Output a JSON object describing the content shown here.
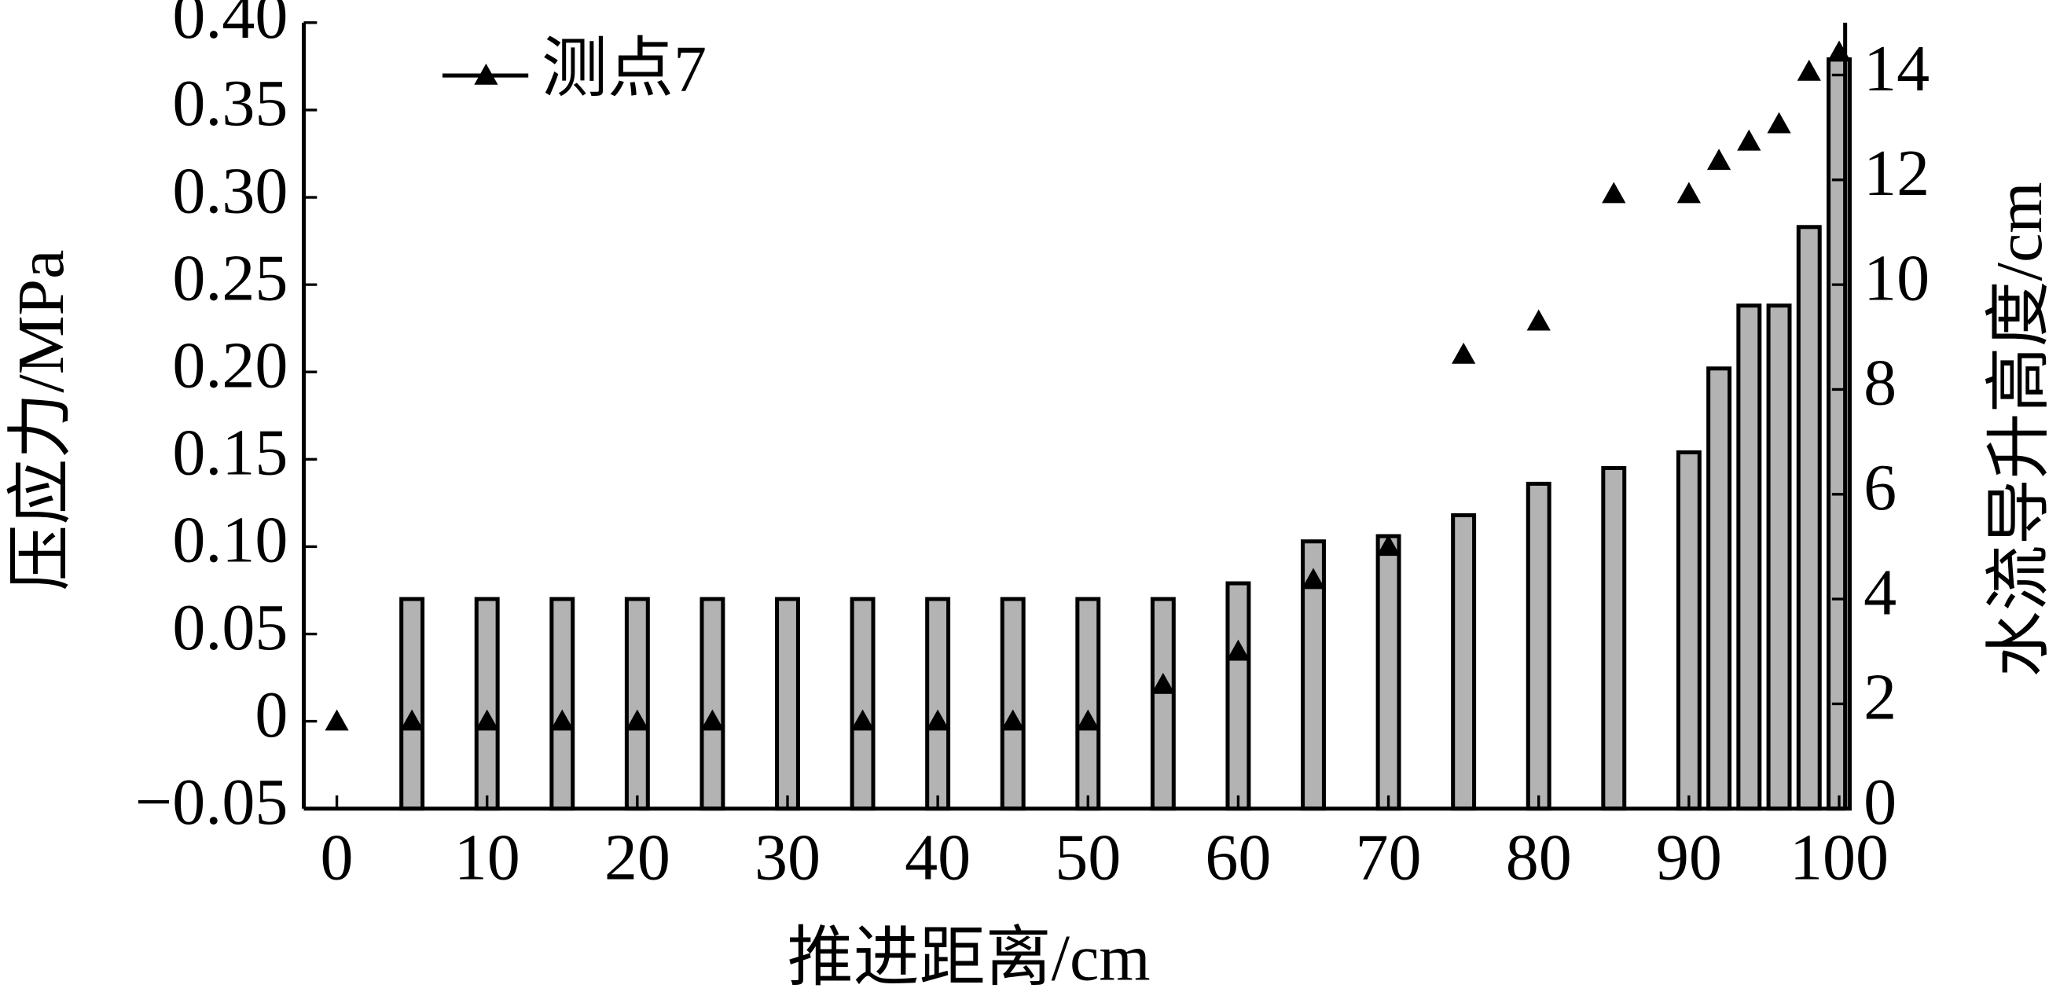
{
  "chart_data": {
    "type": "bar-line",
    "xlabel": "推进距离/cm",
    "ylabel": "压应力/MPa",
    "y2label": "水流导升高度/cm",
    "xlim": [
      -2.2,
      100.4
    ],
    "xticks": [
      0,
      10,
      20,
      30,
      40,
      50,
      60,
      70,
      80,
      90,
      100
    ],
    "ylim": [
      -0.05,
      0.4
    ],
    "yticks": [
      {
        "value": -0.05,
        "label": "−0.05"
      },
      0,
      0.05,
      {
        "value": 0.1,
        "label": "0.10"
      },
      0.15,
      {
        "value": 0.2,
        "label": "0.20"
      },
      0.25,
      {
        "value": 0.3,
        "label": "0.30"
      },
      0.35,
      {
        "value": 0.4,
        "label": "0.40"
      }
    ],
    "y2lim": [
      0,
      15
    ],
    "y2ticks": [
      0,
      2,
      4,
      6,
      8,
      10,
      12,
      14
    ],
    "legend": "top-left",
    "series": [
      {
        "type": "bar",
        "axis": "y2",
        "color": "#b3b3b3",
        "x": [
          5,
          10,
          15,
          20,
          25,
          30,
          35,
          40,
          45,
          50,
          55,
          60,
          65,
          70,
          75,
          80,
          85,
          90,
          92,
          94,
          96,
          98,
          100
        ],
        "values": [
          4.0,
          4.0,
          4.0,
          4.0,
          4.0,
          4.0,
          4.0,
          4.0,
          4.0,
          4.0,
          4.0,
          4.3,
          5.1,
          5.2,
          5.6,
          6.2,
          6.5,
          6.8,
          8.4,
          9.6,
          9.6,
          11.1,
          14.3
        ]
      },
      {
        "type": "line",
        "name": "测点7",
        "axis": "y",
        "color": "#000000",
        "x": [
          0,
          5,
          10,
          15,
          20,
          25,
          35,
          40,
          45,
          50,
          55,
          60,
          65,
          70,
          75,
          80,
          85,
          90,
          92,
          94,
          96,
          98,
          100
        ],
        "values": [
          0,
          0,
          0,
          0,
          0,
          0,
          0,
          0,
          0,
          0,
          0.021,
          0.04,
          0.081,
          0.1,
          0.21,
          0.229,
          0.302,
          0.302,
          0.321,
          0.332,
          0.342,
          0.372,
          0.383
        ]
      }
    ]
  }
}
